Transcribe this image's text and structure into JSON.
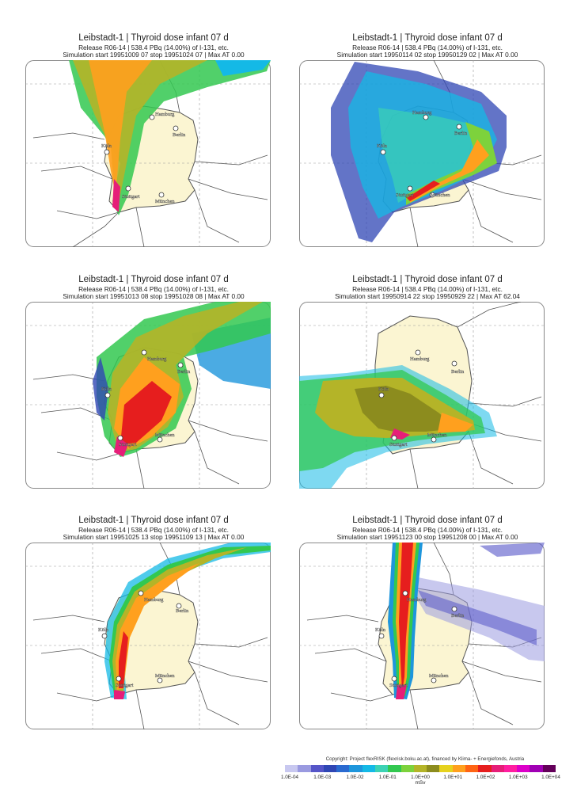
{
  "panels": [
    {
      "title": "Leibstadt-1 | Thyroid dose infant 07 d",
      "release": "Release R06-14 |  538.4 PBq (14.00%) of I-131, etc.",
      "simulation": "Simulation start 19951009 07  stop 19951024 07 | Max AT    0.00"
    },
    {
      "title": "Leibstadt-1 | Thyroid dose infant 07 d",
      "release": "Release R06-14 |  538.4 PBq (14.00%) of I-131, etc.",
      "simulation": "Simulation start 19950114 02  stop 19950129 02 | Max AT    0.00"
    },
    {
      "title": "Leibstadt-1 | Thyroid dose infant 07 d",
      "release": "Release R06-14 |  538.4 PBq (14.00%) of I-131, etc.",
      "simulation": "Simulation start 19951013 08  stop 19951028 08 | Max AT    0.00"
    },
    {
      "title": "Leibstadt-1 | Thyroid dose infant 07 d",
      "release": "Release R06-14 |  538.4 PBq (14.00%) of I-131, etc.",
      "simulation": "Simulation start 19950914 22  stop 19950929 22 | Max AT   62.04"
    },
    {
      "title": "Leibstadt-1 | Thyroid dose infant 07 d",
      "release": "Release R06-14 |  538.4 PBq (14.00%) of I-131, etc.",
      "simulation": "Simulation start 19951025 13  stop 19951109 13 | Max AT    0.00"
    },
    {
      "title": "Leibstadt-1 | Thyroid dose infant 07 d",
      "release": "Release R06-14 |  538.4 PBq (14.00%) of I-131, etc.",
      "simulation": "Simulation start 19951123 00  stop 19951208 00 | Max AT    0.00"
    }
  ],
  "cities": {
    "hamburg": "Hamburg",
    "berlin": "Berlin",
    "koeln": "Köln",
    "stuttgart": "Stuttgart",
    "muenchen": "München"
  },
  "footer": {
    "copyright": "Copyright: Project flexRISK (flexrisk.boku.ac.at), financed by Klima- + Energiefonds, Austria",
    "unit": "mSv",
    "ticks": [
      "1.0E-04",
      "1.0E-03",
      "1.0E-02",
      "1.0E-01",
      "1.0E+00",
      "1.0E+01",
      "1.0E+02",
      "1.0E+03",
      "1.0E+04"
    ],
    "colors": [
      "#c8c8f0",
      "#9a9ae0",
      "#5555c8",
      "#2f46b4",
      "#2a6ad0",
      "#1e96dc",
      "#14b9e6",
      "#3cd2b4",
      "#32c850",
      "#7dd23c",
      "#b4b428",
      "#8c8c1e",
      "#e6d21e",
      "#ffa01e",
      "#ff6414",
      "#e61e1e",
      "#e61e78",
      "#ff1ea0",
      "#dc00c8",
      "#a000b4",
      "#64005a"
    ]
  },
  "map_colors": {
    "land": "#ffffff",
    "germany": "#fbf5d2",
    "border": "#555555",
    "grid": "#9a9a9a"
  }
}
